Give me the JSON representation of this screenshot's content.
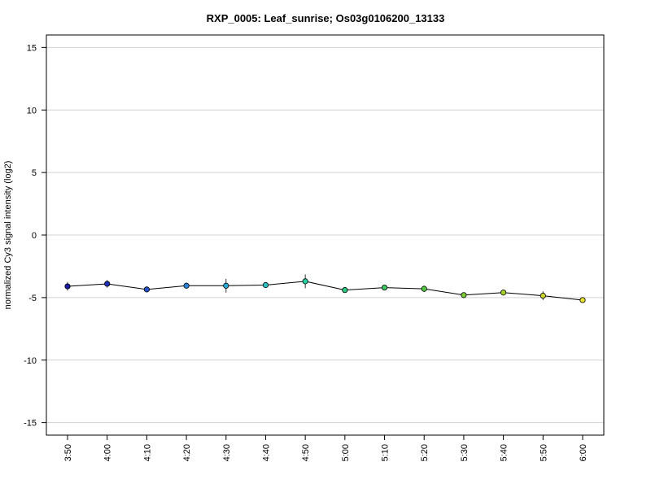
{
  "chart_data": {
    "type": "line",
    "title": "RXP_0005: Leaf_sunrise; Os03g0106200_13133",
    "xlabel": "",
    "ylabel": "normalized Cy3 signal intensity (log2)",
    "ylim": [
      -16,
      16
    ],
    "yticks": [
      -15,
      -10,
      -5,
      0,
      5,
      10,
      15
    ],
    "grid": true,
    "categories": [
      "3:50",
      "4:00",
      "4:10",
      "4:20",
      "4:30",
      "4:40",
      "4:50",
      "5:00",
      "5:10",
      "5:20",
      "5:30",
      "5:40",
      "5:50",
      "6:00"
    ],
    "series": [
      {
        "values": [
          -4.1,
          -3.9,
          -4.35,
          -4.05,
          -4.05,
          -4.0,
          -3.7,
          -4.4,
          -4.2,
          -4.3,
          -4.8,
          -4.6,
          -4.85,
          -5.2
        ],
        "error": [
          0.35,
          0.3,
          0.12,
          0.12,
          0.55,
          0.15,
          0.55,
          0.12,
          0.12,
          0.25,
          0.12,
          0.2,
          0.35,
          0.12
        ],
        "point_colors": [
          "#1a1aa0",
          "#1f2fb5",
          "#2454c8",
          "#2a82d2",
          "#2aa8d4",
          "#28c2c0",
          "#24d0a2",
          "#2ac880",
          "#3cc860",
          "#52c840",
          "#7acb34",
          "#a6d02e",
          "#cad42c",
          "#e6e030"
        ]
      }
    ],
    "line_color": "#000000",
    "grid_color": "#d3d3d3"
  }
}
